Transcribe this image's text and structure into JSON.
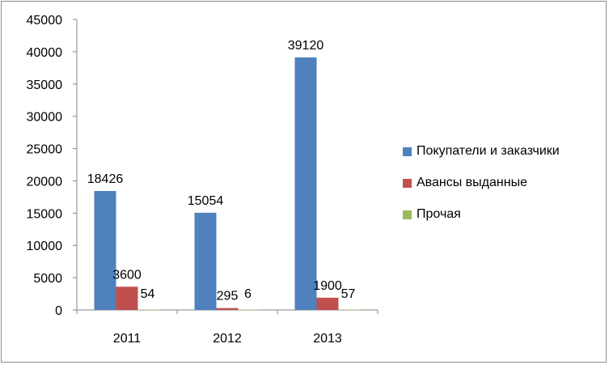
{
  "chart_data": {
    "type": "bar",
    "categories": [
      "2011",
      "2012",
      "2013"
    ],
    "series": [
      {
        "name": "Покупатели и заказчики",
        "values": [
          18426,
          15054,
          39120
        ],
        "color": "#4f81bd"
      },
      {
        "name": "Авансы выданные",
        "values": [
          3600,
          295,
          1900
        ],
        "color": "#c0504d"
      },
      {
        "name": "Прочая",
        "values": [
          54,
          6,
          57
        ],
        "color": "#9bbb59"
      }
    ],
    "ylim": [
      0,
      45000
    ],
    "yticks": [
      "0",
      "5000",
      "10000",
      "15000",
      "20000",
      "25000",
      "30000",
      "35000",
      "40000",
      "45000"
    ],
    "grid": false,
    "legend": "right",
    "data_labels": true
  }
}
